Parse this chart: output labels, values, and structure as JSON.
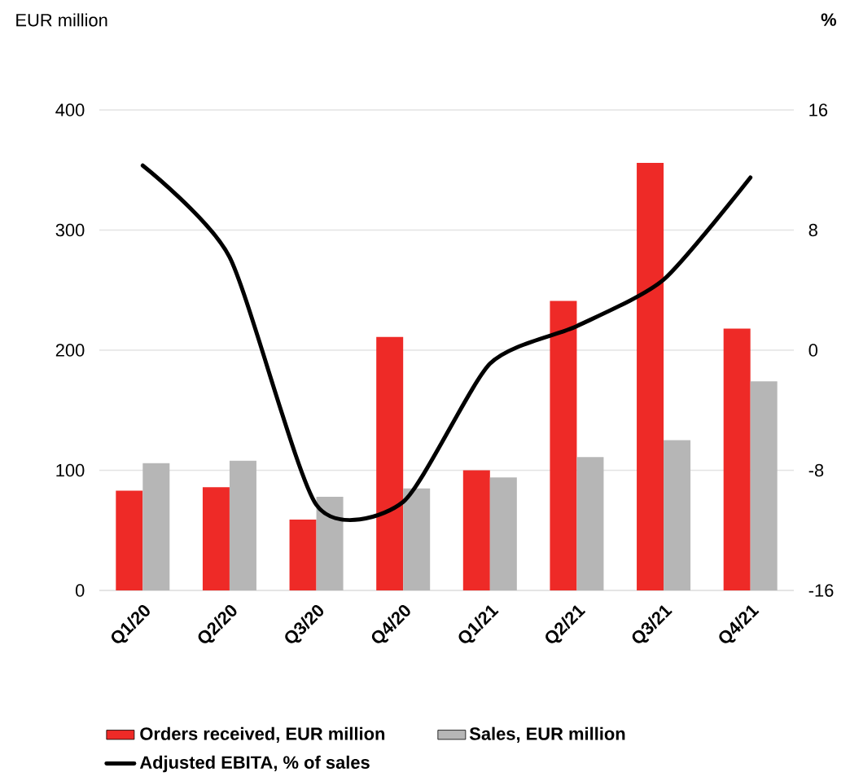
{
  "chart_data": {
    "type": "bar",
    "categories": [
      "Q1/20",
      "Q2/20",
      "Q3/20",
      "Q4/20",
      "Q1/21",
      "Q2/21",
      "Q3/21",
      "Q4/21"
    ],
    "series": [
      {
        "name": "Orders received, EUR million",
        "color": "#ee2a27",
        "values": [
          83,
          86,
          59,
          211,
          100,
          241,
          356,
          218
        ]
      },
      {
        "name": "Sales, EUR million",
        "color": "#b6b6b6",
        "values": [
          106,
          108,
          78,
          85,
          94,
          111,
          125,
          174
        ]
      },
      {
        "name": "Adjusted EBITA, % of sales",
        "type": "line",
        "axis": "y2",
        "color": "#000000",
        "values": [
          12.3,
          6.2,
          -10.3,
          -10.1,
          -0.9,
          1.6,
          4.7,
          11.5
        ]
      }
    ],
    "ylabel": "EUR million",
    "y2label": "%",
    "ylim": [
      0,
      400
    ],
    "yticks": [
      0,
      100,
      200,
      300,
      400
    ],
    "y2lim": [
      -16,
      16
    ],
    "y2ticks": [
      -16,
      -8,
      0,
      8,
      16
    ],
    "grid": "y",
    "legend": "bottom"
  }
}
